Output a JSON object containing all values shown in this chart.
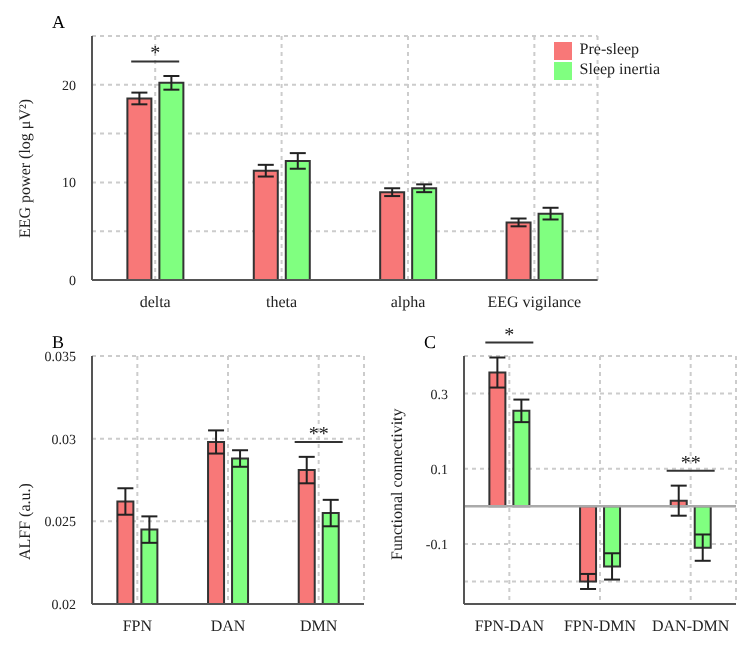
{
  "chart_data": [
    {
      "type": "bar",
      "title": "A",
      "ylabel": "EEG power (log μV²)",
      "categories": [
        "delta",
        "theta",
        "alpha",
        "EEG vigilance"
      ],
      "series": [
        {
          "name": "Pre-sleep",
          "color": "#f87878",
          "values": [
            18.6,
            11.2,
            9.0,
            5.9
          ],
          "errors": [
            0.6,
            0.6,
            0.4,
            0.4
          ]
        },
        {
          "name": "Sleep inertia",
          "color": "#80ff80",
          "values": [
            20.2,
            12.2,
            9.4,
            6.8
          ],
          "errors": [
            0.7,
            0.8,
            0.4,
            0.6
          ]
        }
      ],
      "ylim": [
        0,
        25
      ],
      "yticks": [
        0,
        {
          "value": 5,
          "label": null
        },
        10,
        {
          "value": 15,
          "label": null
        },
        20,
        {
          "value": 25,
          "label": null
        }
      ],
      "grid": true,
      "legend": "top right",
      "annotations": [
        "*"
      ]
    },
    {
      "type": "bar",
      "title": "B",
      "ylabel": "ALFF (a.u.)",
      "categories": [
        "FPN",
        "DAN",
        "DMN"
      ],
      "series": [
        {
          "color": "#f87878",
          "values": [
            0.0262,
            0.0298,
            0.0281
          ],
          "errors": [
            0.0008,
            0.0007,
            0.0008
          ]
        },
        {
          "color": "#80ff80",
          "values": [
            0.0245,
            0.0288,
            0.0255
          ],
          "errors": [
            0.0008,
            0.0005,
            0.0008
          ]
        }
      ],
      "ylim": [
        0.02,
        0.035
      ],
      "yticks": [
        0.02,
        0.025,
        0.03,
        0.035
      ],
      "grid": true,
      "annotations": [
        "**"
      ]
    },
    {
      "type": "bar",
      "title": "C",
      "ylabel": "Functional  connectivity",
      "categories": [
        "FPN-DAN",
        "FPN-DMN",
        "DAN-DMN"
      ],
      "series": [
        {
          "color": "#f87878",
          "values": [
            0.356,
            -0.2,
            0.015
          ],
          "errors": [
            0.04,
            0.02,
            0.04
          ]
        },
        {
          "color": "#80ff80",
          "values": [
            0.254,
            -0.16,
            -0.11
          ],
          "errors": [
            0.03,
            0.035,
            0.035
          ]
        }
      ],
      "ylim": [
        -0.26,
        0.4
      ],
      "yticks": [
        {
          "value": -0.2,
          "label": null
        },
        -0.1,
        0.1,
        0.3
      ],
      "grid": true,
      "ref_lines": [
        {
          "axis": "y",
          "value": 0,
          "color": "#aaaaaa"
        }
      ],
      "annotations": [
        "*",
        "**"
      ]
    }
  ]
}
